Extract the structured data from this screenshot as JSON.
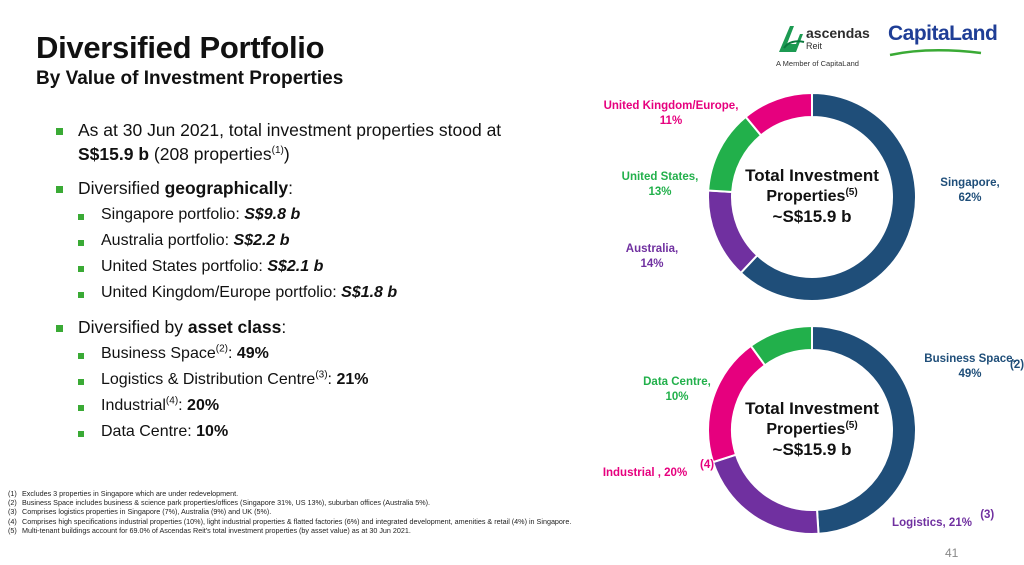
{
  "header": {
    "title": "Diversified Portfolio",
    "subtitle": "By Value of Investment Properties"
  },
  "logos": {
    "ascendas_name": "ascendas",
    "ascendas_reit": "Reit",
    "ascendas_member": "A Member of CapitaLand",
    "capitaland": "CapitaLand"
  },
  "bullets": {
    "b1_text": "As at 30 Jun 2021, total investment properties stood at",
    "b1_value": "S$15.9 b",
    "b1_tail": " (208 properties",
    "b1_sup": "(1)",
    "b1_close": ")",
    "b2_prefix": "Diversified ",
    "b2_bold": "geographically",
    "b2_suffix": ":",
    "geo_items": [
      {
        "label": "Singapore portfolio: ",
        "value": "S$9.8 b"
      },
      {
        "label": "Australia portfolio: ",
        "value": "S$2.2 b"
      },
      {
        "label": "United States portfolio: ",
        "value": "S$2.1 b"
      },
      {
        "label": "United Kingdom/Europe portfolio: ",
        "value": "S$1.8 b"
      }
    ],
    "b3_prefix": "Diversified by ",
    "b3_bold": "asset class",
    "b3_suffix": ":",
    "asset_items": [
      {
        "label": "Business Space",
        "sup": "(2)",
        "value": "49%"
      },
      {
        "label": "Logistics & Distribution Centre",
        "sup": "(3)",
        "value": "21%"
      },
      {
        "label": "Industrial",
        "sup": "(4)",
        "value": "20%"
      },
      {
        "label": "Data Centre: ",
        "sup": "",
        "value": "10%"
      }
    ]
  },
  "footnotes": [
    {
      "num": "(1)",
      "text": "Excludes 3 properties in Singapore which are under redevelopment."
    },
    {
      "num": "(2)",
      "text": "Business Space includes business & science park properties/offices (Singapore 31%, US 13%), suburban offices (Australia 5%)."
    },
    {
      "num": "(3)",
      "text": "Comprises logistics properties in Singapore (7%), Australia (9%) and UK (5%)."
    },
    {
      "num": "(4)",
      "text": "Comprises high specifications industrial properties (10%), light industrial properties & flatted factories (6%) and integrated development, amenities & retail (4%) in Singapore."
    },
    {
      "num": "(5)",
      "text": "Multi-tenant buildings account for 69.0% of Ascendas Reit's total investment properties (by asset value) as at 30 Jun 2021."
    }
  ],
  "page_number": "41",
  "chart_data": [
    {
      "type": "pie",
      "style": "donut",
      "center_text": [
        "Total Investment",
        "Properties",
        "~S$15.9 b"
      ],
      "center_sup": "(5)",
      "slices": [
        {
          "name": "Singapore,",
          "value": 62,
          "label": "62%",
          "color": "#1f4e79"
        },
        {
          "name": "Australia,",
          "value": 14,
          "label": "14%",
          "color": "#7030a0"
        },
        {
          "name": "United States,",
          "value": 13,
          "label": "13%",
          "color": "#22b04b"
        },
        {
          "name": "United Kingdom/Europe,",
          "value": 11,
          "label": "11%",
          "color": "#e6007e"
        }
      ]
    },
    {
      "type": "pie",
      "style": "donut",
      "center_text": [
        "Total Investment",
        "Properties",
        "~S$15.9 b"
      ],
      "center_sup": "(5)",
      "slices": [
        {
          "name": "Business Space,",
          "value": 49,
          "label": "49%",
          "sup": "(2)",
          "color": "#1f4e79"
        },
        {
          "name": "Logistics,",
          "value": 21,
          "label": "21%",
          "sup": "(3)",
          "color": "#7030a0"
        },
        {
          "name": "Industrial ,",
          "value": 20,
          "label": "20%",
          "sup": "(4)",
          "color": "#e6007e"
        },
        {
          "name": "Data Centre,",
          "value": 10,
          "label": "10%",
          "color": "#22b04b"
        }
      ]
    }
  ]
}
